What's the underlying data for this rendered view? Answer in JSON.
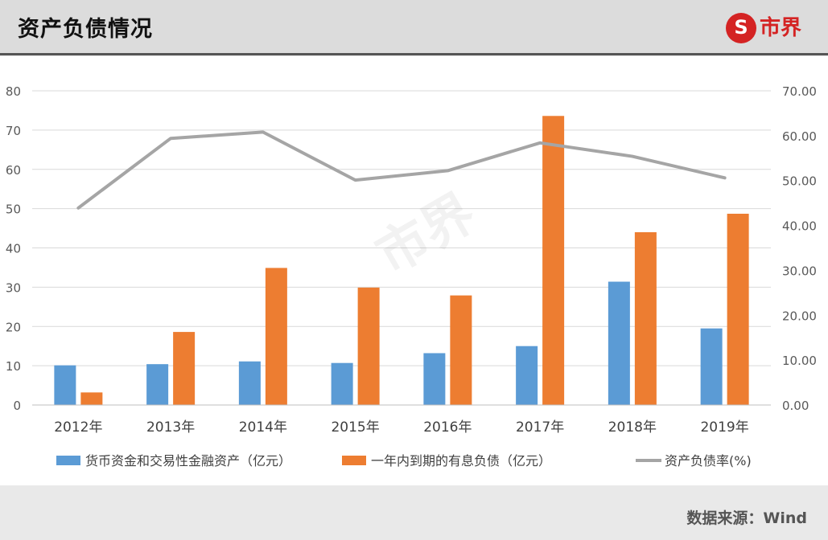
{
  "header": {
    "title": "资产负债情况",
    "logo_text": "市界",
    "logo_mark": "S"
  },
  "footer": {
    "source": "数据来源：Wind"
  },
  "watermark": "市界",
  "colors": {
    "cash": "#5b9bd5",
    "debt": "#ed7d31",
    "ratio": "#a5a5a5",
    "brand": "#d42323"
  },
  "chart_data": {
    "type": "bar",
    "categories": [
      "2012年",
      "2013年",
      "2014年",
      "2015年",
      "2016年",
      "2017年",
      "2018年",
      "2019年"
    ],
    "series": [
      {
        "name": "货币资金和交易性金融资产（亿元）",
        "type": "bar",
        "axis": "left",
        "values": [
          10.1,
          10.4,
          11.1,
          10.7,
          13.2,
          15.0,
          31.4,
          19.5
        ]
      },
      {
        "name": "一年内到期的有息负债（亿元）",
        "type": "bar",
        "axis": "left",
        "values": [
          3.2,
          18.6,
          34.9,
          29.9,
          27.9,
          73.6,
          44.0,
          48.7
        ]
      },
      {
        "name": "资产负债率(%)",
        "type": "line",
        "axis": "right",
        "values": [
          43.9,
          59.4,
          60.8,
          50.1,
          52.2,
          58.4,
          55.4,
          50.6
        ]
      }
    ],
    "y_left": {
      "min": 0,
      "max": 80,
      "ticks": [
        "0",
        "10",
        "20",
        "30",
        "40",
        "50",
        "60",
        "70",
        "80"
      ]
    },
    "y_right": {
      "min": 0,
      "max": 70,
      "ticks": [
        "0.00",
        "10.00",
        "20.00",
        "30.00",
        "40.00",
        "50.00",
        "60.00",
        "70.00"
      ]
    },
    "grid": true,
    "legend": "bottom"
  }
}
